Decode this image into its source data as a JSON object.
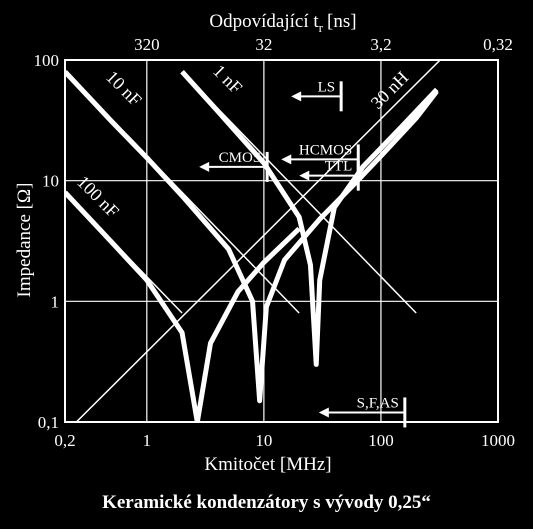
{
  "caption": "Keramické kondenzátory s vývody 0,25“",
  "chart_data": {
    "type": "line",
    "title": "",
    "xlabel": "Kmitočet [MHz]",
    "ylabel": "Impedance [Ω]",
    "x2label": "Odpovídající t",
    "x2label_sub": "r",
    "x2label_unit": "[ns]",
    "xscale": "log",
    "yscale": "log",
    "xlim": [
      0.2,
      1000
    ],
    "ylim": [
      0.1,
      100
    ],
    "grid": true,
    "x_ticks": [
      {
        "value": 0.2,
        "label": "0,2"
      },
      {
        "value": 1,
        "label": "1"
      },
      {
        "value": 10,
        "label": "10"
      },
      {
        "value": 100,
        "label": "100"
      },
      {
        "value": 1000,
        "label": "1000"
      }
    ],
    "y_ticks": [
      {
        "value": 0.1,
        "label": "0,1"
      },
      {
        "value": 1,
        "label": "1"
      },
      {
        "value": 10,
        "label": "10"
      },
      {
        "value": 100,
        "label": "100"
      }
    ],
    "x2_ticks": [
      {
        "value": 1,
        "label": "320"
      },
      {
        "value": 10,
        "label": "32"
      },
      {
        "value": 100,
        "label": "3,2"
      },
      {
        "value": 1000,
        "label": "0,32"
      }
    ],
    "capacitor_lines": [
      {
        "label": "10 nF",
        "x": [
          0.2,
          20
        ],
        "y": [
          80,
          0.8
        ]
      },
      {
        "label": "100 nF",
        "x": [
          0.2,
          2
        ],
        "y": [
          8,
          0.8
        ]
      },
      {
        "label": "1 nF",
        "x": [
          2,
          200
        ],
        "y": [
          80,
          0.8
        ]
      }
    ],
    "inductor_lines": [
      {
        "label": "30 nH",
        "x": [
          0.25,
          1000
        ],
        "y": [
          0.1,
          300
        ]
      }
    ],
    "series": [
      {
        "label": "100 nF",
        "x": [
          0.2,
          0.5,
          1,
          2,
          2.7,
          3.5,
          6,
          10,
          20
        ],
        "y": [
          8,
          3.1,
          1.5,
          0.55,
          0.1,
          0.45,
          1.2,
          2.1,
          4
        ]
      },
      {
        "label": "10 nF",
        "x": [
          0.2,
          0.5,
          1,
          2,
          5,
          8,
          9.2,
          10.5,
          15,
          30,
          60,
          100,
          200,
          300
        ],
        "y": [
          80,
          31,
          15.5,
          7.5,
          2.7,
          1.0,
          0.15,
          0.9,
          2.2,
          4.8,
          9.5,
          16,
          33,
          55
        ]
      },
      {
        "label": "1 nF",
        "x": [
          2,
          4,
          10,
          20,
          25,
          28,
          30,
          40,
          70,
          150,
          300
        ],
        "y": [
          80,
          38,
          14,
          5,
          2,
          0.3,
          1.5,
          6,
          13,
          28,
          57
        ]
      }
    ],
    "logic_families": [
      {
        "label": "LS",
        "tr_ns": 7,
        "z_ohm": 50
      },
      {
        "label": "HCMOS",
        "tr_ns": 5,
        "z_ohm": 15
      },
      {
        "label": "CMOS",
        "tr_ns": 30,
        "z_ohm": 13
      },
      {
        "label": "TTL",
        "tr_ns": 5,
        "z_ohm": 11
      },
      {
        "label": "S,F,AS",
        "tr_ns": 2,
        "z_ohm": 0.12
      }
    ]
  }
}
